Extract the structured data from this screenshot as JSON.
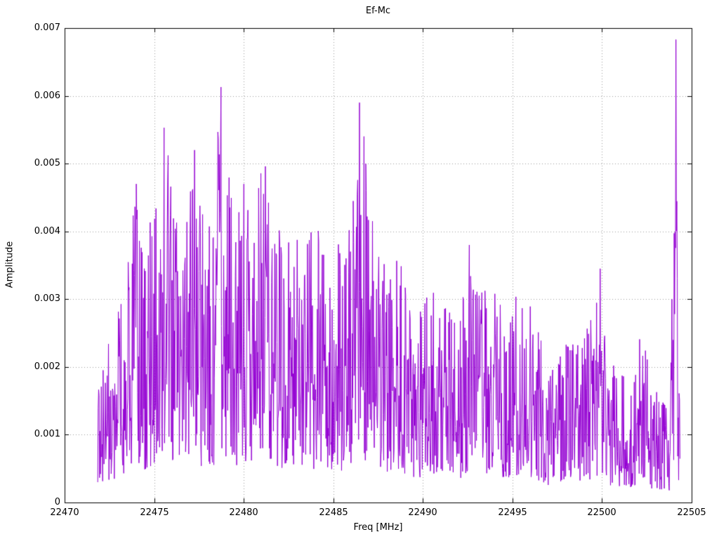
{
  "chart_data": {
    "type": "line",
    "title": "Ef-Mc",
    "xlabel": "Freq [MHz]",
    "ylabel": "Amplitude",
    "xlim": [
      22470,
      22505
    ],
    "ylim": [
      0,
      0.007
    ],
    "x_ticks": [
      22470,
      22475,
      22480,
      22485,
      22490,
      22495,
      22500,
      22505
    ],
    "y_ticks": [
      0,
      0.001,
      0.002,
      0.003,
      0.004,
      0.005,
      0.006,
      0.007
    ],
    "grid": "dotted",
    "legend": "none",
    "line_color": "#9400D3",
    "background": "#FFFFFF",
    "signal_range": [
      22471.85,
      22504.35
    ],
    "envelope": [
      [
        22471.85,
        0.0022
      ],
      [
        22472.5,
        0.0025
      ],
      [
        22473.0,
        0.003
      ],
      [
        22473.5,
        0.0036
      ],
      [
        22474.0,
        0.0047
      ],
      [
        22474.5,
        0.004
      ],
      [
        22475.3,
        0.0048
      ],
      [
        22475.6,
        0.0055
      ],
      [
        22476.0,
        0.0047
      ],
      [
        22476.5,
        0.0047
      ],
      [
        22477.0,
        0.0052
      ],
      [
        22477.3,
        0.0054
      ],
      [
        22477.8,
        0.004
      ],
      [
        22478.3,
        0.0044
      ],
      [
        22478.7,
        0.0061
      ],
      [
        22479.0,
        0.0055
      ],
      [
        22479.5,
        0.0045
      ],
      [
        22480.0,
        0.0047
      ],
      [
        22480.5,
        0.0042
      ],
      [
        22481.0,
        0.005
      ],
      [
        22481.5,
        0.0043
      ],
      [
        22482.0,
        0.0041
      ],
      [
        22482.6,
        0.0046
      ],
      [
        22483.2,
        0.0038
      ],
      [
        22483.8,
        0.0041
      ],
      [
        22484.3,
        0.0041
      ],
      [
        22485.0,
        0.004
      ],
      [
        22485.6,
        0.0039
      ],
      [
        22486.4,
        0.0059
      ],
      [
        22486.7,
        0.0054
      ],
      [
        22487.2,
        0.0042
      ],
      [
        22488.0,
        0.0036
      ],
      [
        22488.7,
        0.0036
      ],
      [
        22489.3,
        0.003
      ],
      [
        22490.0,
        0.0029
      ],
      [
        22490.6,
        0.0033
      ],
      [
        22491.3,
        0.0029
      ],
      [
        22492.0,
        0.0026
      ],
      [
        22492.6,
        0.0038
      ],
      [
        22493.3,
        0.0031
      ],
      [
        22494.0,
        0.0033
      ],
      [
        22494.6,
        0.0026
      ],
      [
        22495.2,
        0.0031
      ],
      [
        22495.7,
        0.0032
      ],
      [
        22496.3,
        0.0027
      ],
      [
        22497.0,
        0.0021
      ],
      [
        22497.6,
        0.0021
      ],
      [
        22498.3,
        0.0027
      ],
      [
        22499.0,
        0.0027
      ],
      [
        22499.6,
        0.0028
      ],
      [
        22499.9,
        0.0034
      ],
      [
        22500.3,
        0.0022
      ],
      [
        22501.0,
        0.0019
      ],
      [
        22501.6,
        0.0018
      ],
      [
        22502.2,
        0.0026
      ],
      [
        22502.8,
        0.0017
      ],
      [
        22503.4,
        0.0016
      ],
      [
        22503.8,
        0.0013
      ],
      [
        22504.1,
        0.0068
      ],
      [
        22504.35,
        0.001
      ]
    ],
    "peaks": [
      [
        22474.0,
        0.0047
      ],
      [
        22475.55,
        0.00553
      ],
      [
        22477.25,
        0.0052
      ],
      [
        22478.72,
        0.00613
      ],
      [
        22480.0,
        0.0047
      ],
      [
        22481.2,
        0.00496
      ],
      [
        22486.45,
        0.0059
      ],
      [
        22486.7,
        0.0054
      ],
      [
        22492.6,
        0.0038
      ],
      [
        22499.9,
        0.00345
      ],
      [
        22504.12,
        0.00683
      ]
    ]
  }
}
